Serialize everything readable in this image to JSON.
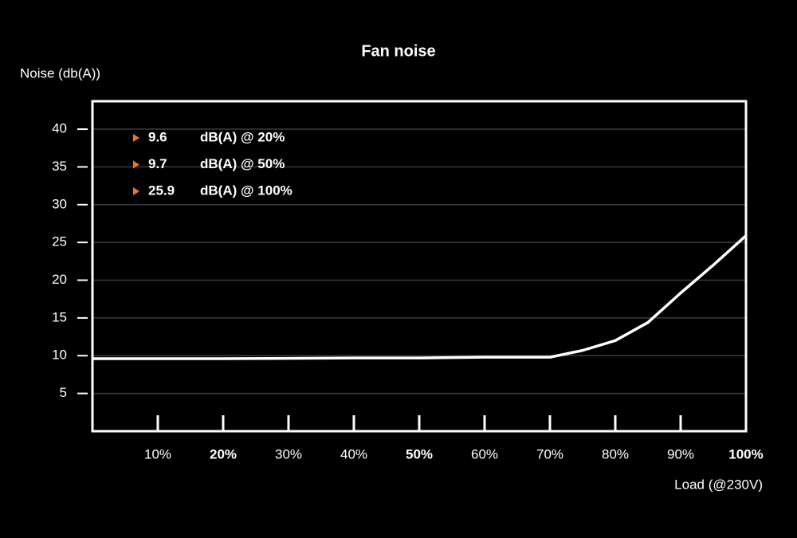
{
  "chart_data": {
    "type": "line",
    "title": "Fan noise",
    "y_label": "Noise (db(A))",
    "x_label": "Load (@230V)",
    "x": [
      0,
      10,
      20,
      30,
      40,
      50,
      60,
      70,
      75,
      80,
      85,
      90,
      95,
      100
    ],
    "series": [
      {
        "name": "Fan noise",
        "color": "#ffffff",
        "values": [
          9.6,
          9.6,
          9.6,
          9.65,
          9.7,
          9.7,
          9.8,
          9.8,
          10.7,
          12.0,
          14.4,
          18.3,
          22.0,
          25.9
        ]
      }
    ],
    "xlim": [
      0,
      100
    ],
    "xticks": [
      {
        "value": 10,
        "label": "10%"
      },
      {
        "value": 20,
        "label": "20%"
      },
      {
        "value": 30,
        "label": "30%"
      },
      {
        "value": 40,
        "label": "40%"
      },
      {
        "value": 50,
        "label": "50%"
      },
      {
        "value": 60,
        "label": "60%"
      },
      {
        "value": 70,
        "label": "70%"
      },
      {
        "value": 80,
        "label": "80%"
      },
      {
        "value": 90,
        "label": "90%"
      },
      {
        "value": 100,
        "label": "100%"
      }
    ],
    "emphasized_xticks": [
      20,
      50,
      100
    ],
    "ylim": [
      0,
      43.7
    ],
    "yticks": [
      5,
      10,
      15,
      20,
      25,
      30,
      35,
      40
    ],
    "grid": true,
    "marker_color": "#e87722",
    "annotations": [
      {
        "value": "9.6",
        "text": "dB(A) @ 20%"
      },
      {
        "value": "9.7",
        "text": "dB(A) @ 50%"
      },
      {
        "value": "25.9",
        "text": "dB(A) @ 100%"
      }
    ]
  }
}
